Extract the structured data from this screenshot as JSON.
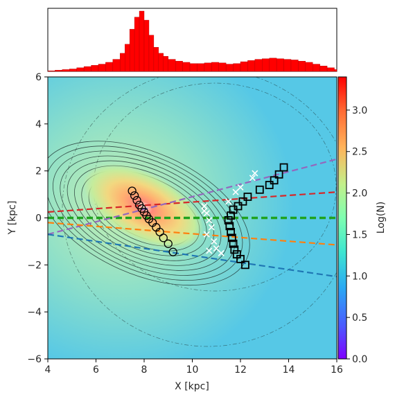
{
  "chart_data": {
    "type": "heatmap",
    "title": "",
    "xlabel": "X [kpc]",
    "ylabel": "Y [kpc]",
    "xlim": [
      4,
      16
    ],
    "ylim": [
      -6,
      6
    ],
    "xticks": [
      4,
      6,
      8,
      10,
      12,
      14,
      16
    ],
    "xtick_labels": [
      "4",
      "6",
      "8",
      "10",
      "12",
      "14",
      "16"
    ],
    "yticks": [
      -6,
      -4,
      -2,
      0,
      2,
      4,
      6
    ],
    "ytick_labels": [
      "−6",
      "−4",
      "−2",
      "0",
      "2",
      "4",
      "6"
    ],
    "colorbar": {
      "label": "Log(N)",
      "range": [
        0.0,
        3.4
      ],
      "ticks": [
        0.0,
        0.5,
        1.0,
        1.5,
        2.0,
        2.5,
        3.0
      ],
      "tick_labels": [
        "0.0",
        "0.5",
        "1.0",
        "1.5",
        "2.0",
        "2.5",
        "3.0"
      ],
      "colormap": "rainbow"
    },
    "top_histogram": {
      "color": "#ff0000",
      "x_bins": [
        4.0,
        4.3,
        4.6,
        4.9,
        5.2,
        5.5,
        5.8,
        6.1,
        6.4,
        6.7,
        7.0,
        7.2,
        7.4,
        7.6,
        7.8,
        8.0,
        8.2,
        8.4,
        8.6,
        8.8,
        9.0,
        9.3,
        9.6,
        9.9,
        10.2,
        10.5,
        10.8,
        11.1,
        11.4,
        11.7,
        12.0,
        12.3,
        12.6,
        12.9,
        13.2,
        13.5,
        13.8,
        14.1,
        14.4,
        14.7,
        15.0,
        15.3,
        15.6,
        15.9
      ],
      "relative_counts": [
        0.01,
        0.02,
        0.03,
        0.04,
        0.06,
        0.08,
        0.1,
        0.12,
        0.15,
        0.2,
        0.3,
        0.45,
        0.7,
        0.9,
        1.0,
        0.85,
        0.6,
        0.4,
        0.3,
        0.25,
        0.2,
        0.17,
        0.15,
        0.13,
        0.13,
        0.14,
        0.15,
        0.14,
        0.12,
        0.13,
        0.16,
        0.18,
        0.2,
        0.21,
        0.22,
        0.21,
        0.2,
        0.19,
        0.17,
        0.15,
        0.12,
        0.09,
        0.06,
        0.03
      ]
    },
    "density_peak": {
      "x": 8.0,
      "y": 0.2
    },
    "series": [
      {
        "marker": "circle",
        "color": "#000000",
        "x": [
          7.5,
          7.6,
          7.7,
          7.8,
          7.9,
          8.0,
          8.1,
          8.2,
          8.35,
          8.5,
          8.65,
          8.8,
          9.0,
          9.2
        ],
        "y": [
          1.15,
          0.95,
          0.75,
          0.55,
          0.4,
          0.25,
          0.1,
          -0.05,
          -0.2,
          -0.4,
          -0.6,
          -0.85,
          -1.1,
          -1.45
        ]
      },
      {
        "marker": "square",
        "color": "#000000",
        "x": [
          11.5,
          11.55,
          11.6,
          11.65,
          11.7,
          11.6,
          11.75,
          11.85,
          12.0,
          12.2,
          11.7,
          11.9,
          12.1,
          12.3,
          12.8,
          13.2,
          13.4,
          13.6,
          13.8
        ],
        "y": [
          -0.1,
          -0.35,
          -0.6,
          -0.85,
          -1.1,
          0.1,
          -1.35,
          -1.55,
          -1.75,
          -2.0,
          0.35,
          0.5,
          0.7,
          0.9,
          1.2,
          1.4,
          1.6,
          1.85,
          2.15
        ]
      },
      {
        "marker": "cross",
        "color": "#ffffff",
        "x": [
          10.5,
          10.6,
          10.7,
          10.8,
          10.6,
          10.9,
          11.0,
          11.2,
          11.5,
          11.8,
          12.0,
          12.5,
          12.6,
          10.5,
          10.7
        ],
        "y": [
          0.5,
          0.2,
          -0.1,
          -0.4,
          -0.7,
          -1.0,
          -1.3,
          -1.5,
          0.7,
          1.1,
          1.3,
          1.7,
          1.9,
          0.3,
          -1.4
        ]
      }
    ],
    "reference_lines": [
      {
        "color": "#1fa31f",
        "style": "dashed",
        "x": [
          4,
          16
        ],
        "y": [
          0.0,
          0.0
        ]
      },
      {
        "color": "#d62728",
        "style": "dashed",
        "x": [
          4,
          16
        ],
        "y": [
          0.25,
          1.1
        ]
      },
      {
        "color": "#9467bd",
        "style": "dashed",
        "x": [
          4,
          16
        ],
        "y": [
          -0.7,
          2.5
        ]
      },
      {
        "color": "#ff7f0e",
        "style": "dashed",
        "x": [
          4,
          16
        ],
        "y": [
          -0.2,
          -1.15
        ]
      },
      {
        "color": "#1f77b4",
        "style": "dashed",
        "x": [
          4,
          16
        ],
        "y": [
          -0.7,
          -2.5
        ]
      }
    ]
  }
}
